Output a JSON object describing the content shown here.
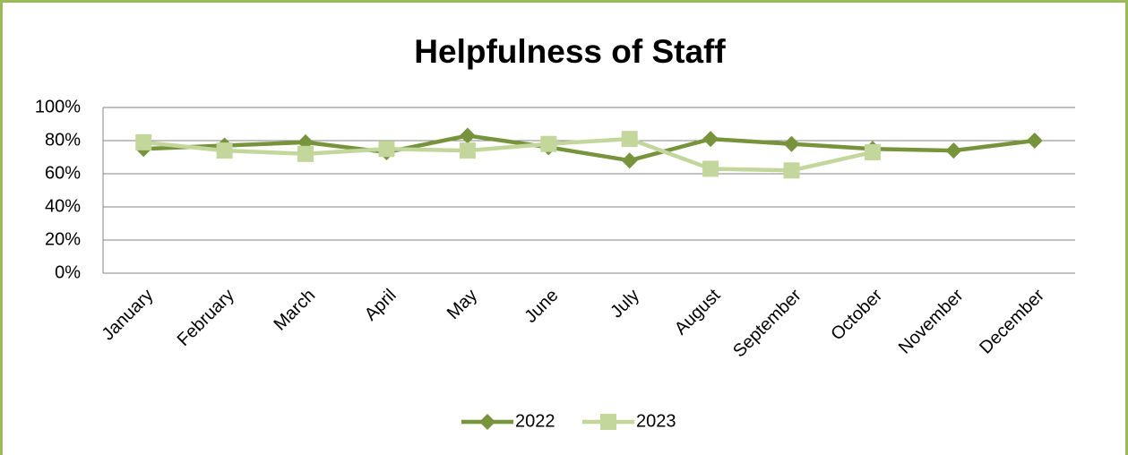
{
  "chart_data": {
    "type": "line",
    "title": "Helpfulness of Staff",
    "categories": [
      "January",
      "February",
      "March",
      "April",
      "May",
      "June",
      "July",
      "August",
      "September",
      "October",
      "November",
      "December"
    ],
    "series": [
      {
        "name": "2022",
        "color": "#77933c",
        "marker": "diamond",
        "values": [
          75,
          77,
          79,
          73,
          83,
          76,
          68,
          81,
          78,
          75,
          74,
          80
        ]
      },
      {
        "name": "2023",
        "color": "#c3d69b",
        "marker": "square",
        "values": [
          79,
          74,
          72,
          75,
          74,
          78,
          81,
          63,
          62,
          73,
          null,
          null
        ]
      }
    ],
    "ylim": [
      0,
      100
    ],
    "yticks": [
      {
        "value": 0,
        "label": "0%"
      },
      {
        "value": 20,
        "label": "20%"
      },
      {
        "value": 40,
        "label": "40%"
      },
      {
        "value": 60,
        "label": "60%"
      },
      {
        "value": 80,
        "label": "80%"
      },
      {
        "value": 100,
        "label": "100%"
      }
    ],
    "grid": true,
    "legend": "bottom"
  }
}
